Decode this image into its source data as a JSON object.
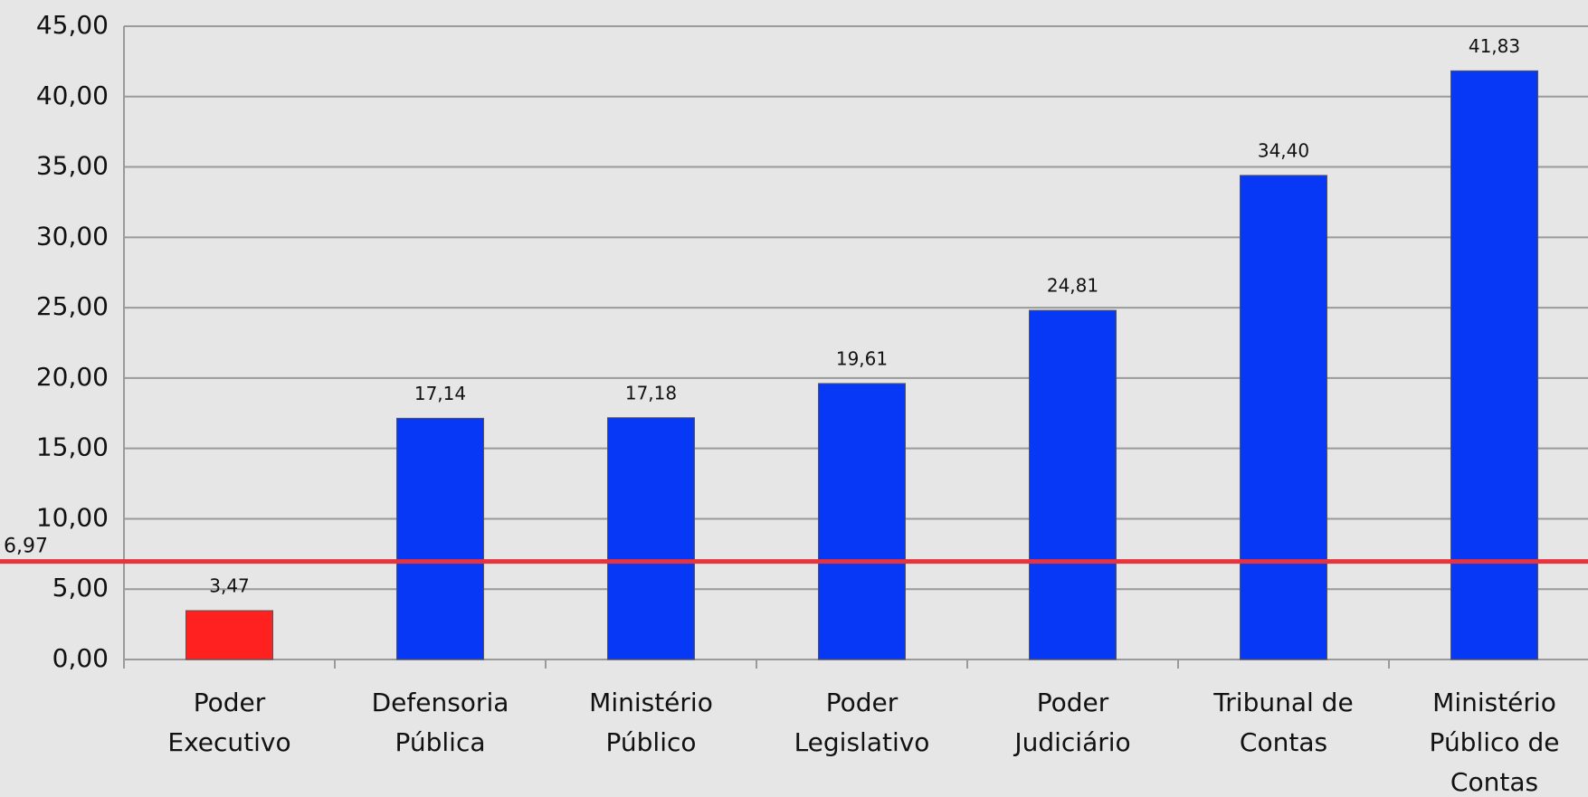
{
  "chart_data": {
    "type": "bar",
    "categories": [
      "Poder Executivo",
      "Defensoria Pública",
      "Ministério Público",
      "Poder Legislativo",
      "Poder Judiciário",
      "Tribunal de Contas",
      "Ministério Público de Contas"
    ],
    "values": [
      3.47,
      17.14,
      17.18,
      19.61,
      24.81,
      34.4,
      41.83
    ],
    "value_labels": [
      "3,47",
      "17,14",
      "17,18",
      "19,61",
      "24,81",
      "34,40",
      "41,83"
    ],
    "colors": [
      "#ff2020",
      "#0638f5",
      "#0638f5",
      "#0638f5",
      "#0638f5",
      "#0638f5",
      "#0638f5"
    ],
    "ylim": [
      0,
      45
    ],
    "yticks": [
      {
        "value": 0,
        "label": "0,00"
      },
      {
        "value": 5,
        "label": "5,00"
      },
      {
        "value": 10,
        "label": "10,00"
      },
      {
        "value": 15,
        "label": "15,00"
      },
      {
        "value": 20,
        "label": "20,00"
      },
      {
        "value": 25,
        "label": "25,00"
      },
      {
        "value": 30,
        "label": "30,00"
      },
      {
        "value": 35,
        "label": "35,00"
      },
      {
        "value": 40,
        "label": "40,00"
      },
      {
        "value": 45,
        "label": "45,00"
      }
    ],
    "grid": true,
    "reference_line": {
      "value": 6.97,
      "label": "6,97",
      "color": "#e8323c"
    }
  }
}
